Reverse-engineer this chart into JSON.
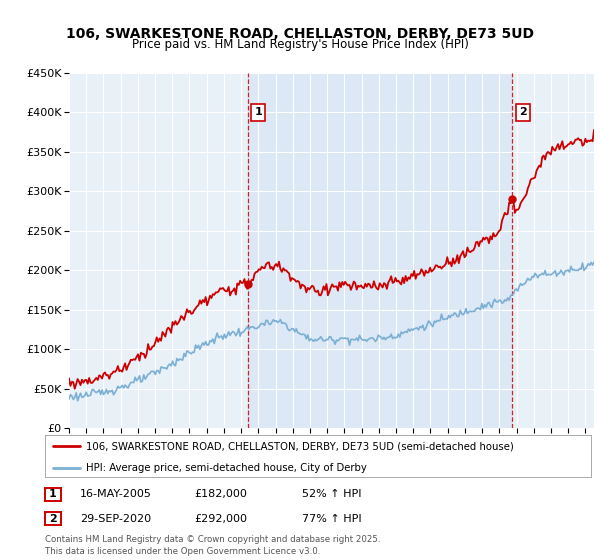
{
  "title_line1": "106, SWARKESTONE ROAD, CHELLASTON, DERBY, DE73 5UD",
  "title_line2": "Price paid vs. HM Land Registry's House Price Index (HPI)",
  "legend_line1": "106, SWARKESTONE ROAD, CHELLASTON, DERBY, DE73 5UD (semi-detached house)",
  "legend_line2": "HPI: Average price, semi-detached house, City of Derby",
  "footer": "Contains HM Land Registry data © Crown copyright and database right 2025.\nThis data is licensed under the Open Government Licence v3.0.",
  "purchase1_date": "16-MAY-2005",
  "purchase1_price": 182000,
  "purchase1_pct": "52%",
  "purchase2_date": "29-SEP-2020",
  "purchase2_price": 292000,
  "purchase2_pct": "77%",
  "red_color": "#cc0000",
  "blue_color": "#7bafd4",
  "shade_color": "#dce8f5",
  "background_color": "#e8f0f8",
  "ylim": [
    0,
    450000
  ],
  "xlim_start": 1995.0,
  "xlim_end": 2025.5,
  "purchase1_x": 2005.37,
  "purchase2_x": 2020.75
}
